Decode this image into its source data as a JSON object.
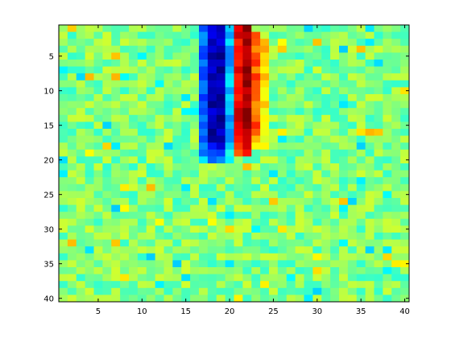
{
  "chart_data": {
    "type": "heatmap",
    "colormap": "jet",
    "rows": 40,
    "cols": 40,
    "xlim": [
      0.5,
      40.5
    ],
    "ylim": [
      0.5,
      40.5
    ],
    "y_reversed": true,
    "xticks": [
      5,
      10,
      15,
      20,
      25,
      30,
      35,
      40
    ],
    "yticks": [
      5,
      10,
      15,
      20,
      25,
      30,
      35,
      40
    ],
    "xtick_labels": [
      "5",
      "10",
      "15",
      "20",
      "25",
      "30",
      "35",
      "40"
    ],
    "ytick_labels": [
      "5",
      "10",
      "15",
      "20",
      "25",
      "30",
      "35",
      "40"
    ],
    "title": "",
    "xlabel": "",
    "ylabel": "",
    "background_range": [
      0.42,
      0.58
    ],
    "noise_seed": 12345,
    "features": [
      {
        "rows": [
          1,
          20
        ],
        "cols": [
          18,
          19
        ],
        "value": 0.05,
        "note": "deep blue vertical band"
      },
      {
        "rows": [
          1,
          20
        ],
        "cols": [
          17,
          17
        ],
        "value": 0.22,
        "note": "light blue edge"
      },
      {
        "rows": [
          1,
          20
        ],
        "cols": [
          20,
          20
        ],
        "value": 0.3,
        "note": "cyan edge"
      },
      {
        "rows": [
          1,
          19
        ],
        "cols": [
          21,
          21
        ],
        "value": 0.88,
        "note": "orange/red"
      },
      {
        "rows": [
          1,
          19
        ],
        "cols": [
          22,
          22
        ],
        "value": 0.97,
        "note": "dark red core"
      },
      {
        "rows": [
          2,
          18
        ],
        "cols": [
          23,
          23
        ],
        "value": 0.78,
        "note": "orange/yellow"
      },
      {
        "rows": [
          3,
          18
        ],
        "cols": [
          24,
          24
        ],
        "value": 0.66,
        "note": "yellow"
      }
    ]
  }
}
